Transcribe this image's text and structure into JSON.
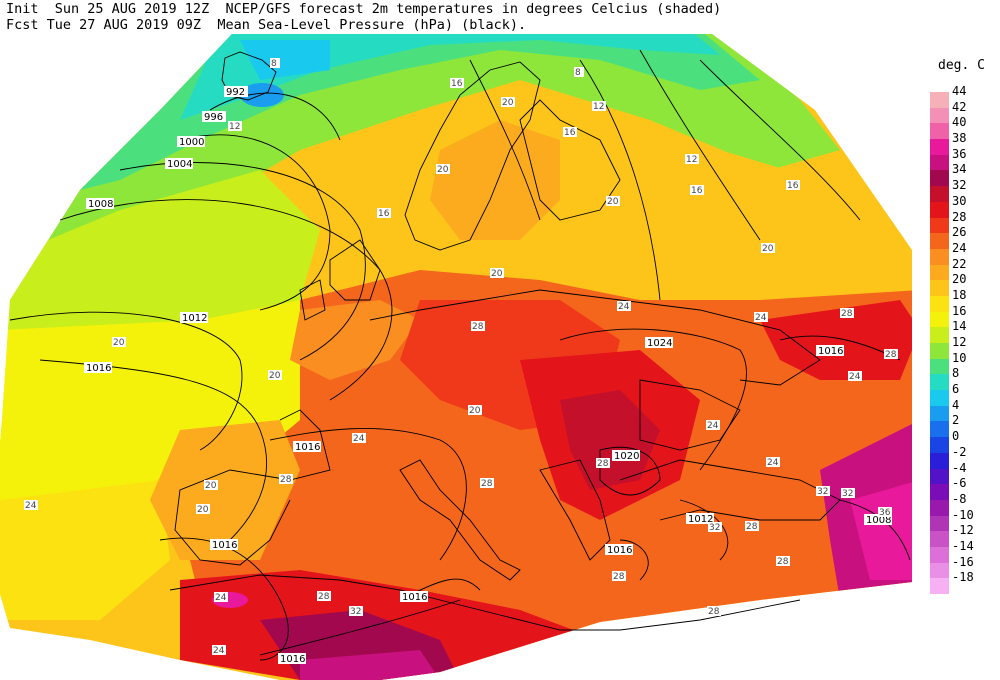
{
  "header": {
    "line1": "Init  Sun 25 AUG 2019 12Z  NCEP/GFS forecast 2m temperatures in degrees Celcius (shaded)",
    "line2": "Fcst Tue 27 AUG 2019 09Z  Mean Sea-Level Pressure (hPa) (black)."
  },
  "legend": {
    "title": "deg. C",
    "levels": [
      {
        "value": "44",
        "color": "#f6b1b8"
      },
      {
        "value": "42",
        "color": "#f48fb6"
      },
      {
        "value": "40",
        "color": "#ef62a7"
      },
      {
        "value": "38",
        "color": "#e8199a"
      },
      {
        "value": "36",
        "color": "#c8107e"
      },
      {
        "value": "34",
        "color": "#a1084e"
      },
      {
        "value": "32",
        "color": "#c4102a"
      },
      {
        "value": "30",
        "color": "#e4141b"
      },
      {
        "value": "28",
        "color": "#f0391b"
      },
      {
        "value": "26",
        "color": "#f5661d"
      },
      {
        "value": "24",
        "color": "#fb8e21"
      },
      {
        "value": "22",
        "color": "#fcaa1e"
      },
      {
        "value": "20",
        "color": "#fdc51a"
      },
      {
        "value": "18",
        "color": "#fde211"
      },
      {
        "value": "16",
        "color": "#f4f20b"
      },
      {
        "value": "14",
        "color": "#c8ee1b"
      },
      {
        "value": "12",
        "color": "#8ee63a"
      },
      {
        "value": "10",
        "color": "#4be07d"
      },
      {
        "value": "8",
        "color": "#25dcc2"
      },
      {
        "value": "6",
        "color": "#1ac9ee"
      },
      {
        "value": "4",
        "color": "#1a9cef"
      },
      {
        "value": "2",
        "color": "#1a70ec"
      },
      {
        "value": "0",
        "color": "#1a44e4"
      },
      {
        "value": "-2",
        "color": "#2a1ed9"
      },
      {
        "value": "-4",
        "color": "#5212c8"
      },
      {
        "value": "-6",
        "color": "#7b0db8"
      },
      {
        "value": "-8",
        "color": "#9a19ad"
      },
      {
        "value": "-10",
        "color": "#b035b6"
      },
      {
        "value": "-12",
        "color": "#c852c6"
      },
      {
        "value": "-14",
        "color": "#dc6fd8"
      },
      {
        "value": "-16",
        "color": "#ea8fe6"
      },
      {
        "value": "-18",
        "color": "#f6b0f3"
      }
    ]
  },
  "isobar_labels": [
    "992",
    "996",
    "1000",
    "1004",
    "1008",
    "1012",
    "1016",
    "1016",
    "1016",
    "1016",
    "1016",
    "1016",
    "1020",
    "1024",
    "1016",
    "1012",
    "1008"
  ],
  "temp_labels": [
    "8",
    "12",
    "8",
    "20",
    "16",
    "12",
    "16",
    "12",
    "16",
    "20",
    "20",
    "16",
    "20",
    "16",
    "20",
    "24",
    "28",
    "28",
    "24",
    "24",
    "20",
    "24",
    "28",
    "28",
    "20",
    "20",
    "24",
    "20",
    "20",
    "24",
    "28",
    "32",
    "28",
    "28",
    "28",
    "28",
    "24",
    "24",
    "32",
    "28",
    "32",
    "32",
    "36",
    "24",
    "28"
  ],
  "colors": {
    "coast": "#000000",
    "isobar": "#000000",
    "temp_contour": "#909090"
  }
}
